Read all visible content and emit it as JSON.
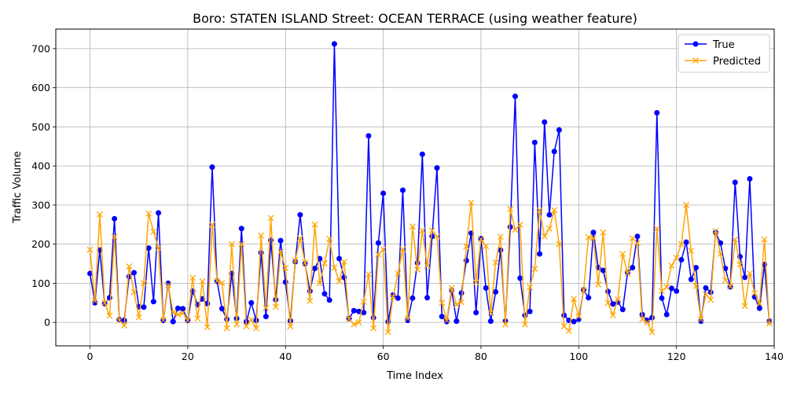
{
  "chart_data": {
    "type": "line",
    "title": "Boro: STATEN ISLAND Street: OCEAN TERRACE (using weather feature)",
    "xlabel": "Time Index",
    "ylabel": "Traffic Volume",
    "xlim": [
      -7,
      140
    ],
    "ylim": [
      -60,
      750
    ],
    "xticks": [
      0,
      20,
      40,
      60,
      80,
      100,
      120,
      140
    ],
    "yticks": [
      0,
      100,
      200,
      300,
      400,
      500,
      600,
      700
    ],
    "grid": true,
    "legend_position": "top-right",
    "series": [
      {
        "name": "True",
        "color": "#0000ff",
        "marker": "o",
        "values": [
          125,
          50,
          185,
          48,
          63,
          265,
          7,
          5,
          117,
          127,
          40,
          39,
          190,
          53,
          280,
          5,
          100,
          2,
          36,
          35,
          5,
          80,
          45,
          60,
          48,
          397,
          105,
          35,
          8,
          125,
          10,
          240,
          2,
          50,
          5,
          178,
          15,
          210,
          58,
          209,
          103,
          4,
          155,
          275,
          150,
          80,
          138,
          163,
          73,
          57,
          712,
          163,
          115,
          10,
          30,
          28,
          25,
          477,
          12,
          203,
          330,
          2,
          70,
          62,
          338,
          5,
          62,
          152,
          430,
          63,
          220,
          395,
          15,
          2,
          82,
          3,
          75,
          158,
          228,
          25,
          214,
          88,
          3,
          78,
          185,
          3,
          244,
          578,
          113,
          18,
          28,
          460,
          175,
          512,
          275,
          437,
          492,
          18,
          5,
          2,
          8,
          83,
          63,
          230,
          140,
          133,
          79,
          47,
          52,
          33,
          128,
          140,
          220,
          20,
          5,
          12,
          536,
          62,
          20,
          87,
          80,
          160,
          205,
          110,
          140,
          3,
          88,
          77,
          230,
          203,
          138,
          91,
          358,
          168,
          115,
          367,
          65,
          36,
          148,
          3
        ]
      },
      {
        "name": "Predicted",
        "color": "#ffa500",
        "marker": "x",
        "values": [
          186,
          55,
          276,
          50,
          17,
          219,
          5,
          -8,
          143,
          78,
          13,
          100,
          278,
          232,
          190,
          6,
          95,
          25,
          20,
          24,
          5,
          114,
          10,
          105,
          -12,
          250,
          106,
          101,
          -15,
          200,
          -5,
          200,
          -10,
          7,
          -15,
          222,
          37,
          267,
          40,
          180,
          139,
          -10,
          159,
          215,
          153,
          55,
          250,
          100,
          151,
          214,
          140,
          105,
          155,
          9,
          -5,
          0,
          53,
          123,
          -15,
          174,
          186,
          -25,
          65,
          125,
          187,
          10,
          245,
          135,
          235,
          145,
          235,
          220,
          50,
          5,
          88,
          45,
          52,
          194,
          306,
          102,
          213,
          195,
          25,
          153,
          219,
          -5,
          290,
          237,
          250,
          -5,
          90,
          137,
          287,
          220,
          240,
          287,
          200,
          -10,
          -22,
          60,
          15,
          82,
          218,
          216,
          97,
          230,
          50,
          18,
          59,
          175,
          125,
          215,
          203,
          8,
          0,
          -25,
          240,
          80,
          90,
          145,
          165,
          200,
          300,
          183,
          93,
          8,
          72,
          58,
          233,
          175,
          108,
          92,
          212,
          148,
          42,
          125,
          75,
          48,
          212,
          -3
        ]
      }
    ]
  }
}
